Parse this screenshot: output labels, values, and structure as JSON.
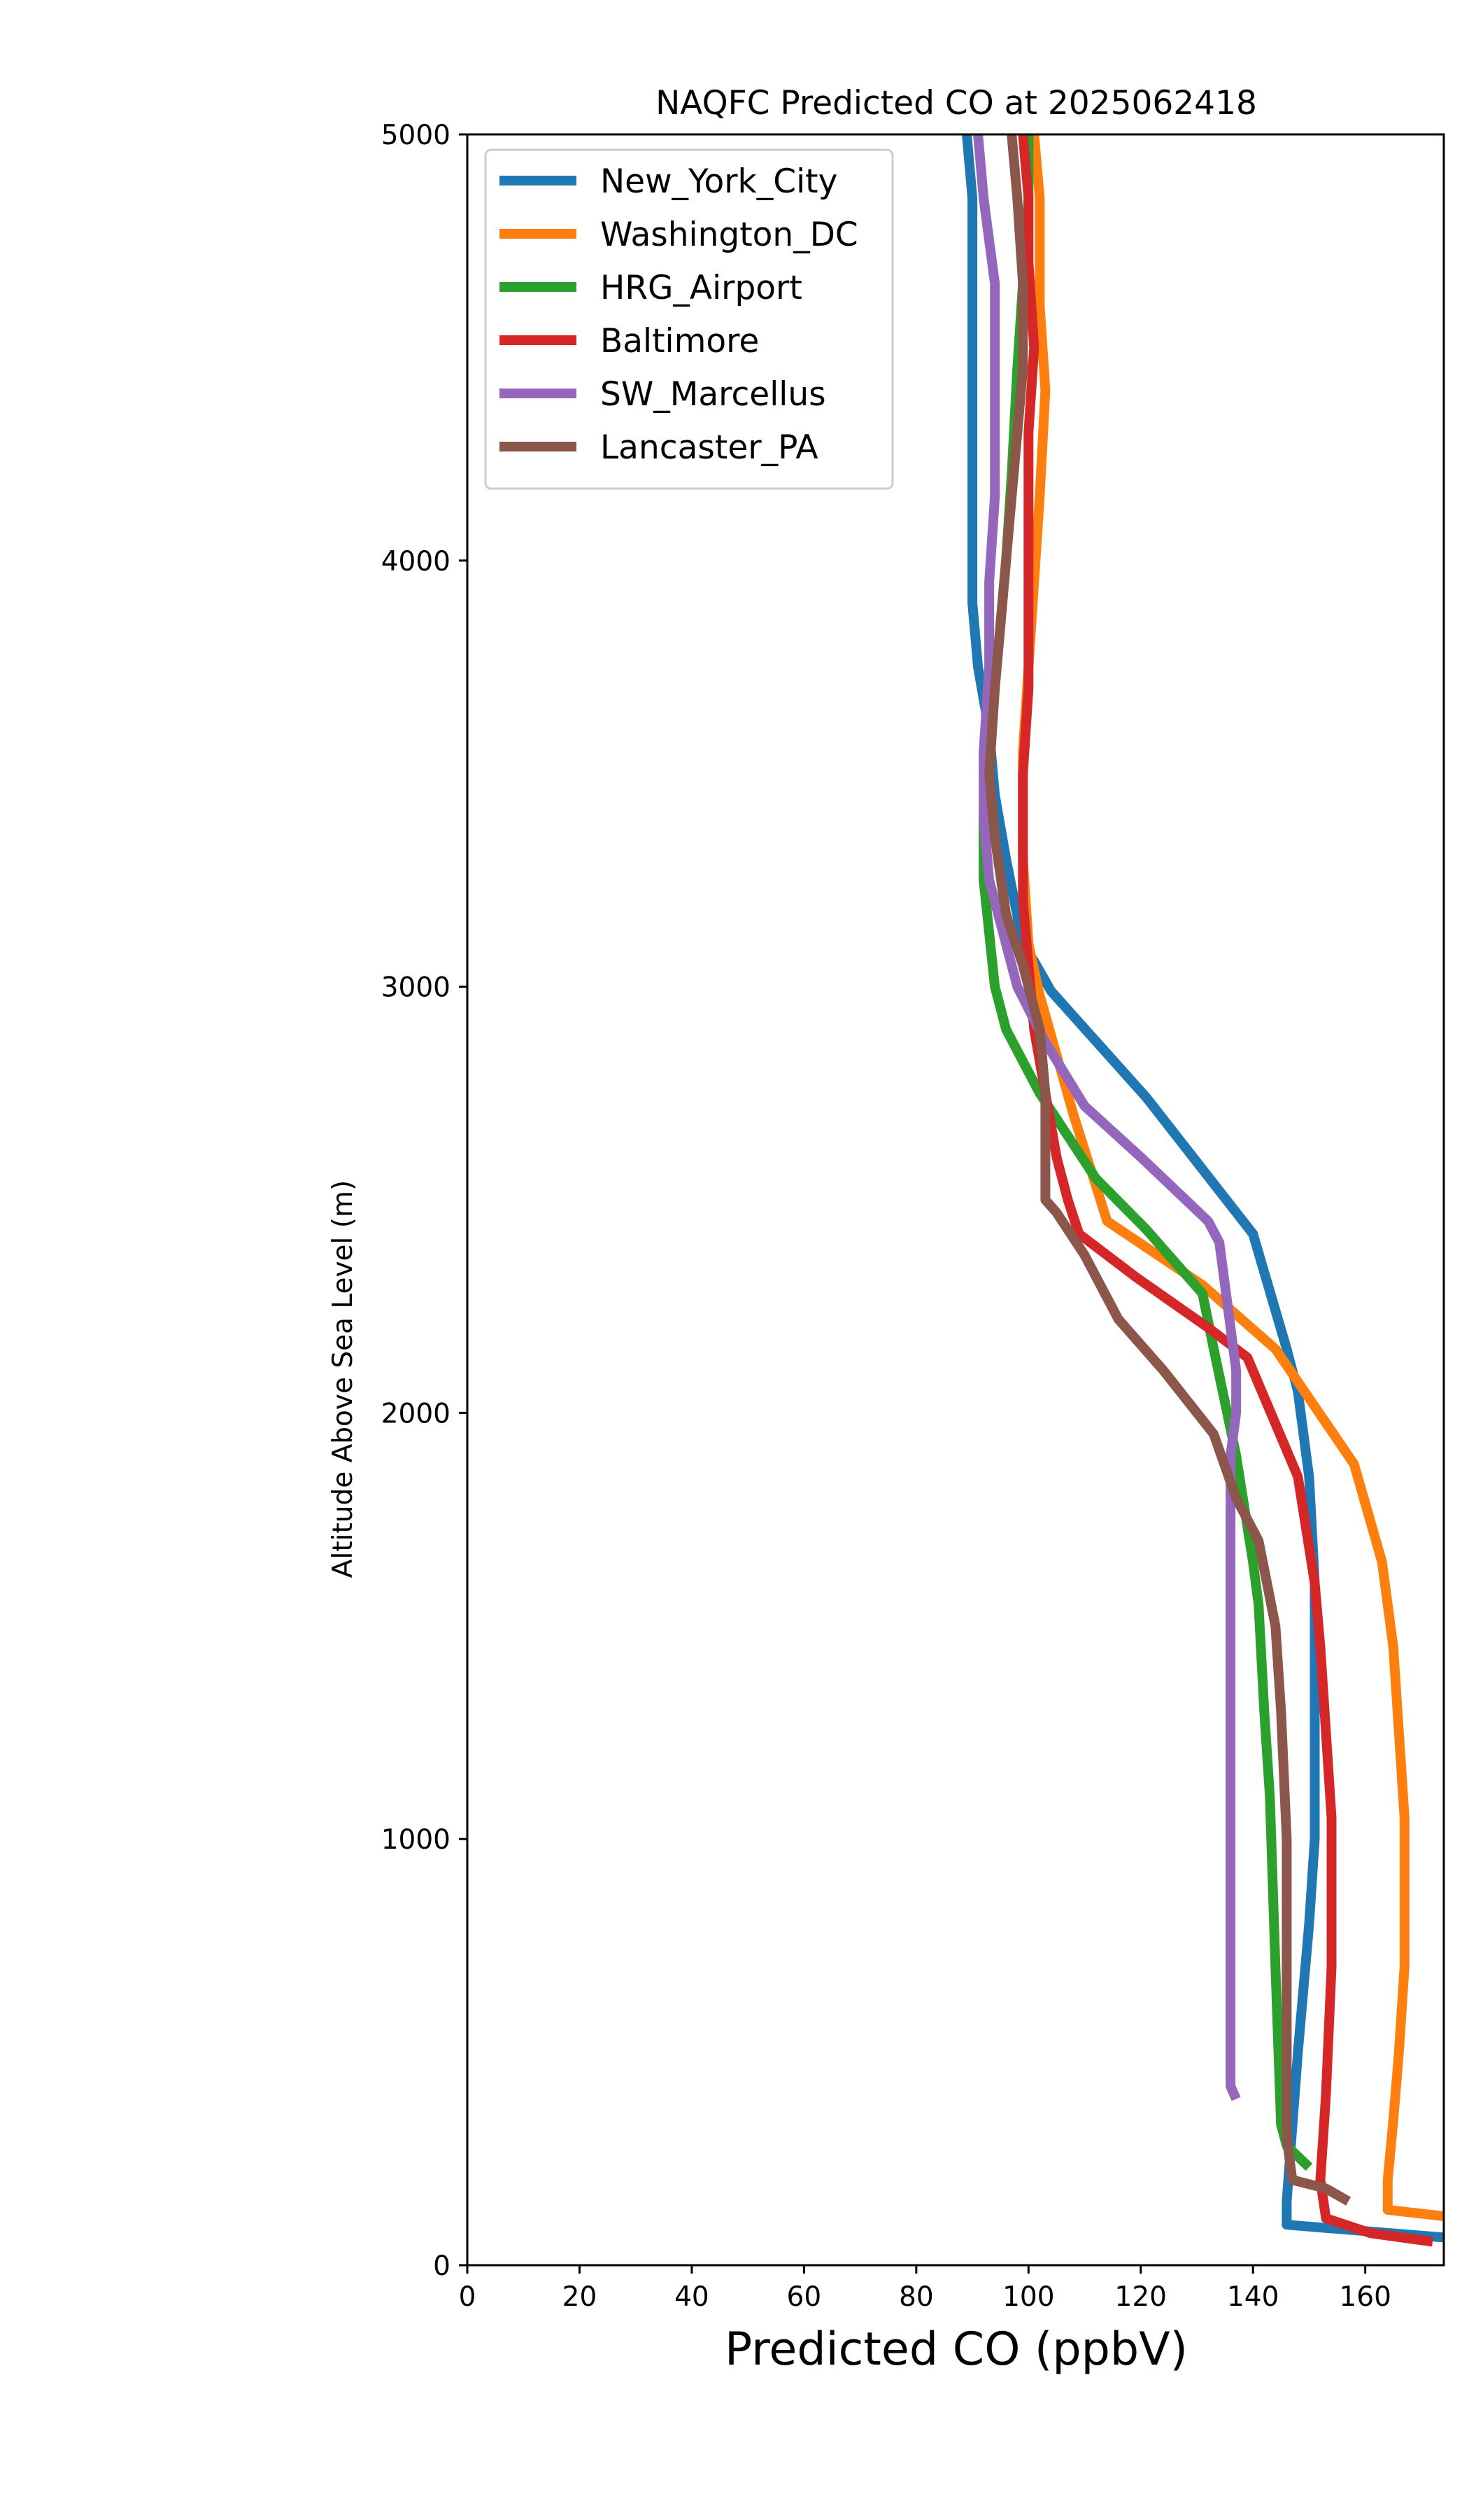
{
  "chart_data": {
    "type": "line",
    "title": "NAQFC Predicted CO at 2025062418",
    "xlabel": "Predicted CO (ppbV)",
    "ylabel": "Altitude Above Sea Level (m)",
    "xlim": [
      0,
      174
    ],
    "ylim": [
      0,
      5000
    ],
    "xticks": [
      0,
      20,
      40,
      60,
      80,
      100,
      120,
      140,
      160
    ],
    "yticks": [
      0,
      1000,
      2000,
      3000,
      4000,
      5000
    ],
    "grid": false,
    "legend_position": "top-left",
    "series": [
      {
        "name": "New_York_City",
        "color": "#1f77b4",
        "points": [
          [
            174,
            65
          ],
          [
            146,
            95
          ],
          [
            146,
            150
          ],
          [
            148,
            500
          ],
          [
            150,
            800
          ],
          [
            151,
            1000
          ],
          [
            151,
            1300
          ],
          [
            151,
            1600
          ],
          [
            150,
            1850
          ],
          [
            148,
            2050
          ],
          [
            146,
            2150
          ],
          [
            140,
            2420
          ],
          [
            121,
            2740
          ],
          [
            104,
            2990
          ],
          [
            101,
            3060
          ],
          [
            99,
            3100
          ],
          [
            96,
            3300
          ],
          [
            94,
            3450
          ],
          [
            93,
            3600
          ],
          [
            91,
            3750
          ],
          [
            90,
            3900
          ],
          [
            90,
            4100
          ],
          [
            90,
            4350
          ],
          [
            90,
            4600
          ],
          [
            90,
            4850
          ],
          [
            89,
            5000
          ]
        ]
      },
      {
        "name": "Washington_DC",
        "color": "#ff7f0e",
        "points": [
          [
            174,
            115
          ],
          [
            164,
            130
          ],
          [
            164,
            200
          ],
          [
            165,
            340
          ],
          [
            166,
            500
          ],
          [
            167,
            700
          ],
          [
            167,
            900
          ],
          [
            167,
            1050
          ],
          [
            166,
            1250
          ],
          [
            165,
            1450
          ],
          [
            163,
            1650
          ],
          [
            158,
            1880
          ],
          [
            144,
            2150
          ],
          [
            131,
            2300
          ],
          [
            114,
            2450
          ],
          [
            108,
            2700
          ],
          [
            102,
            2980
          ],
          [
            100,
            3100
          ],
          [
            99,
            3300
          ],
          [
            99,
            3550
          ],
          [
            100,
            3750
          ],
          [
            101,
            3950
          ],
          [
            102,
            4150
          ],
          [
            103,
            4400
          ],
          [
            102,
            4600
          ],
          [
            102,
            4850
          ],
          [
            101,
            5000
          ]
        ]
      },
      {
        "name": "HRG_Airport",
        "color": "#2ca02c",
        "points": [
          [
            150,
            230
          ],
          [
            146,
            280
          ],
          [
            145,
            330
          ],
          [
            144,
            700
          ],
          [
            143,
            1100
          ],
          [
            142,
            1300
          ],
          [
            141,
            1550
          ],
          [
            140,
            1650
          ],
          [
            137,
            1900
          ],
          [
            133,
            2150
          ],
          [
            131,
            2280
          ],
          [
            121,
            2430
          ],
          [
            112,
            2550
          ],
          [
            107,
            2650
          ],
          [
            102,
            2750
          ],
          [
            96,
            2900
          ],
          [
            94,
            3000
          ],
          [
            92,
            3250
          ],
          [
            92,
            3400
          ],
          [
            93,
            3550
          ],
          [
            94,
            3700
          ],
          [
            95,
            3850
          ],
          [
            96,
            4000
          ],
          [
            97,
            4200
          ],
          [
            98,
            4450
          ],
          [
            99,
            4650
          ],
          [
            100,
            4850
          ],
          [
            100,
            5000
          ]
        ]
      },
      {
        "name": "Baltimore",
        "color": "#d62728",
        "points": [
          [
            172,
            55
          ],
          [
            161,
            75
          ],
          [
            153,
            110
          ],
          [
            152,
            200
          ],
          [
            153,
            400
          ],
          [
            154,
            700
          ],
          [
            154,
            900
          ],
          [
            154,
            1050
          ],
          [
            153,
            1250
          ],
          [
            152,
            1450
          ],
          [
            151,
            1600
          ],
          [
            148,
            1850
          ],
          [
            139,
            2130
          ],
          [
            132,
            2200
          ],
          [
            119,
            2320
          ],
          [
            109,
            2420
          ],
          [
            107,
            2500
          ],
          [
            105,
            2600
          ],
          [
            103,
            2750
          ],
          [
            101,
            2900
          ],
          [
            100,
            3050
          ],
          [
            99,
            3200
          ],
          [
            99,
            3350
          ],
          [
            99,
            3500
          ],
          [
            100,
            3700
          ],
          [
            100,
            3900
          ],
          [
            100,
            4100
          ],
          [
            100,
            4300
          ],
          [
            101,
            4500
          ],
          [
            100,
            4700
          ],
          [
            100,
            4850
          ],
          [
            99,
            5000
          ]
        ]
      },
      {
        "name": "SW_Marcellus",
        "color": "#9467bd",
        "points": [
          [
            137,
            390
          ],
          [
            136,
            420
          ],
          [
            136,
            460
          ],
          [
            136,
            600
          ],
          [
            136,
            800
          ],
          [
            136,
            1000
          ],
          [
            136,
            1200
          ],
          [
            136,
            1400
          ],
          [
            136,
            1550
          ],
          [
            136,
            1700
          ],
          [
            136,
            1800
          ],
          [
            136,
            1900
          ],
          [
            137,
            2000
          ],
          [
            137,
            2100
          ],
          [
            136,
            2200
          ],
          [
            135,
            2300
          ],
          [
            134,
            2400
          ],
          [
            132,
            2450
          ],
          [
            120,
            2600
          ],
          [
            110,
            2720
          ],
          [
            103,
            2870
          ],
          [
            98,
            3000
          ],
          [
            95,
            3150
          ],
          [
            93,
            3250
          ],
          [
            92,
            3400
          ],
          [
            92,
            3550
          ],
          [
            93,
            3750
          ],
          [
            93,
            3950
          ],
          [
            94,
            4150
          ],
          [
            94,
            4400
          ],
          [
            94,
            4650
          ],
          [
            92,
            4850
          ],
          [
            91,
            5000
          ]
        ]
      },
      {
        "name": "Lancaster_PA",
        "color": "#8c564b",
        "points": [
          [
            157,
            150
          ],
          [
            153,
            180
          ],
          [
            147,
            200
          ],
          [
            146,
            300
          ],
          [
            146,
            550
          ],
          [
            146,
            800
          ],
          [
            146,
            1000
          ],
          [
            145,
            1300
          ],
          [
            144,
            1500
          ],
          [
            141,
            1700
          ],
          [
            137,
            1800
          ],
          [
            133,
            1950
          ],
          [
            124,
            2100
          ],
          [
            116,
            2220
          ],
          [
            110,
            2370
          ],
          [
            105,
            2470
          ],
          [
            103,
            2500
          ],
          [
            103,
            2600
          ],
          [
            103,
            2750
          ],
          [
            102,
            2900
          ],
          [
            99,
            3050
          ],
          [
            96,
            3170
          ],
          [
            94,
            3350
          ],
          [
            93,
            3500
          ],
          [
            94,
            3700
          ],
          [
            95,
            3850
          ],
          [
            96,
            4000
          ],
          [
            97,
            4150
          ],
          [
            98,
            4300
          ],
          [
            99,
            4450
          ],
          [
            99,
            4650
          ],
          [
            98,
            4850
          ],
          [
            97,
            5000
          ]
        ]
      }
    ]
  }
}
